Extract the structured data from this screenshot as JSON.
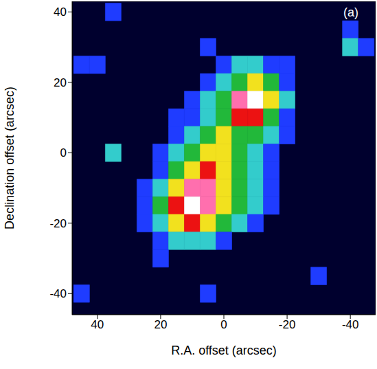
{
  "chart_data": {
    "type": "heatmap",
    "annotation": "(a)",
    "xlabel": "R.A. offset (arcsec)",
    "ylabel": "Declination offset (arcsec)",
    "xlim": [
      48,
      -48
    ],
    "ylim": [
      -46,
      43
    ],
    "xticks": [
      40,
      20,
      0,
      -20,
      -40
    ],
    "yticks": [
      -40,
      -20,
      0,
      20,
      40
    ],
    "x": [
      45,
      40,
      35,
      30,
      25,
      20,
      15,
      10,
      5,
      0,
      -5,
      -10,
      -15,
      -20,
      -25,
      -30,
      -35,
      -40,
      -45
    ],
    "y": [
      40,
      35,
      30,
      25,
      20,
      15,
      10,
      5,
      0,
      -5,
      -10,
      -15,
      -20,
      -25,
      -30,
      -35,
      -40,
      -45
    ],
    "cells": [
      [
        0,
        0,
        1,
        0,
        0,
        0,
        0,
        0,
        0,
        0,
        0,
        0,
        0,
        0,
        0,
        0,
        0,
        0,
        0
      ],
      [
        0,
        0,
        0,
        0,
        0,
        0,
        0,
        0,
        0,
        0,
        0,
        0,
        0,
        0,
        0,
        0,
        0,
        1,
        0
      ],
      [
        0,
        0,
        0,
        0,
        0,
        0,
        0,
        0,
        1,
        0,
        0,
        0,
        0,
        0,
        0,
        0,
        0,
        2,
        1
      ],
      [
        1,
        1,
        0,
        0,
        0,
        0,
        0,
        0,
        0,
        1,
        2,
        2,
        1,
        1,
        0,
        0,
        0,
        0,
        0
      ],
      [
        0,
        0,
        0,
        0,
        0,
        0,
        0,
        0,
        1,
        2,
        3,
        4,
        3,
        1,
        0,
        0,
        0,
        0,
        0
      ],
      [
        0,
        0,
        0,
        0,
        0,
        0,
        0,
        1,
        2,
        3,
        6,
        7,
        4,
        2,
        0,
        0,
        0,
        0,
        0
      ],
      [
        0,
        0,
        0,
        0,
        0,
        0,
        1,
        1,
        2,
        3,
        5,
        5,
        3,
        1,
        0,
        0,
        0,
        0,
        0
      ],
      [
        0,
        0,
        0,
        0,
        0,
        0,
        1,
        2,
        3,
        4,
        3,
        3,
        2,
        1,
        0,
        0,
        0,
        0,
        0
      ],
      [
        0,
        0,
        2,
        0,
        0,
        1,
        2,
        3,
        4,
        4,
        3,
        2,
        1,
        0,
        0,
        0,
        0,
        0,
        0
      ],
      [
        0,
        0,
        0,
        0,
        0,
        1,
        3,
        4,
        5,
        4,
        3,
        2,
        1,
        0,
        0,
        0,
        0,
        0,
        0
      ],
      [
        0,
        0,
        0,
        0,
        1,
        2,
        4,
        6,
        6,
        4,
        3,
        2,
        1,
        0,
        0,
        0,
        0,
        0,
        0
      ],
      [
        0,
        0,
        0,
        0,
        1,
        3,
        5,
        7,
        6,
        4,
        3,
        2,
        1,
        0,
        0,
        0,
        0,
        0,
        0
      ],
      [
        0,
        0,
        0,
        0,
        1,
        2,
        4,
        5,
        4,
        3,
        2,
        1,
        0,
        0,
        0,
        0,
        0,
        0,
        0
      ],
      [
        0,
        0,
        0,
        0,
        0,
        1,
        2,
        2,
        2,
        1,
        0,
        0,
        0,
        0,
        0,
        0,
        0,
        0,
        0
      ],
      [
        0,
        0,
        0,
        0,
        0,
        1,
        0,
        0,
        0,
        0,
        0,
        0,
        0,
        0,
        0,
        0,
        0,
        0,
        0
      ],
      [
        0,
        0,
        0,
        0,
        0,
        0,
        0,
        0,
        0,
        0,
        0,
        0,
        0,
        0,
        0,
        1,
        0,
        0,
        0
      ],
      [
        1,
        0,
        0,
        0,
        0,
        0,
        0,
        0,
        1,
        0,
        0,
        0,
        0,
        0,
        0,
        0,
        0,
        0,
        0
      ],
      [
        0,
        0,
        0,
        0,
        0,
        0,
        0,
        0,
        0,
        0,
        0,
        0,
        0,
        0,
        0,
        0,
        0,
        0,
        0
      ]
    ]
  }
}
